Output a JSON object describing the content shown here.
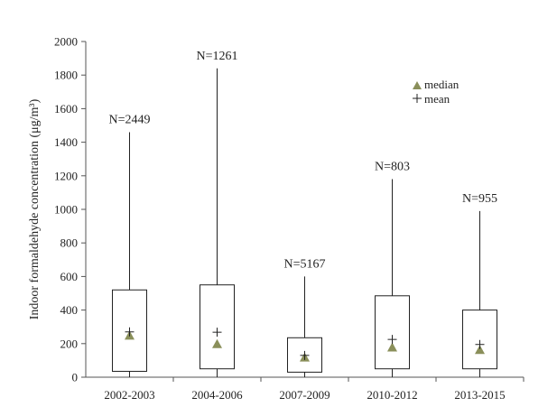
{
  "chart_data": {
    "type": "box",
    "ylabel": "Indoor formaldehyde concentration (μg/m³)",
    "ylim": [
      0,
      2000
    ],
    "yticks": [
      0,
      200,
      400,
      600,
      800,
      1000,
      1200,
      1400,
      1600,
      1800,
      2000
    ],
    "categories": [
      "2002-2003",
      "2004-2006",
      "2007-2009",
      "2010-2012",
      "2013-2015"
    ],
    "boxes": [
      {
        "category": "2002-2003",
        "n_label": "N=2449",
        "whisker_low": 0,
        "q1": 35,
        "median": 245,
        "mean": 270,
        "q3": 520,
        "whisker_high": 1460
      },
      {
        "category": "2004-2006",
        "n_label": "N=1261",
        "whisker_low": 0,
        "q1": 50,
        "median": 195,
        "mean": 268,
        "q3": 550,
        "whisker_high": 1840
      },
      {
        "category": "2007-2009",
        "n_label": "N=5167",
        "whisker_low": 0,
        "q1": 30,
        "median": 115,
        "mean": 130,
        "q3": 235,
        "whisker_high": 600
      },
      {
        "category": "2010-2012",
        "n_label": "N=803",
        "whisker_low": 0,
        "q1": 50,
        "median": 175,
        "mean": 225,
        "q3": 485,
        "whisker_high": 1180
      },
      {
        "category": "2013-2015",
        "n_label": "N=955",
        "whisker_low": 0,
        "q1": 50,
        "median": 160,
        "mean": 195,
        "q3": 400,
        "whisker_high": 990
      }
    ],
    "legend": [
      {
        "marker": "triangle",
        "label": "median"
      },
      {
        "marker": "plus",
        "label": "mean"
      }
    ],
    "legend_position": "top-right",
    "grid": false,
    "colors": {
      "median_marker": "#8a8f5a",
      "box_stroke": "#222222",
      "axis": "#555555"
    }
  }
}
